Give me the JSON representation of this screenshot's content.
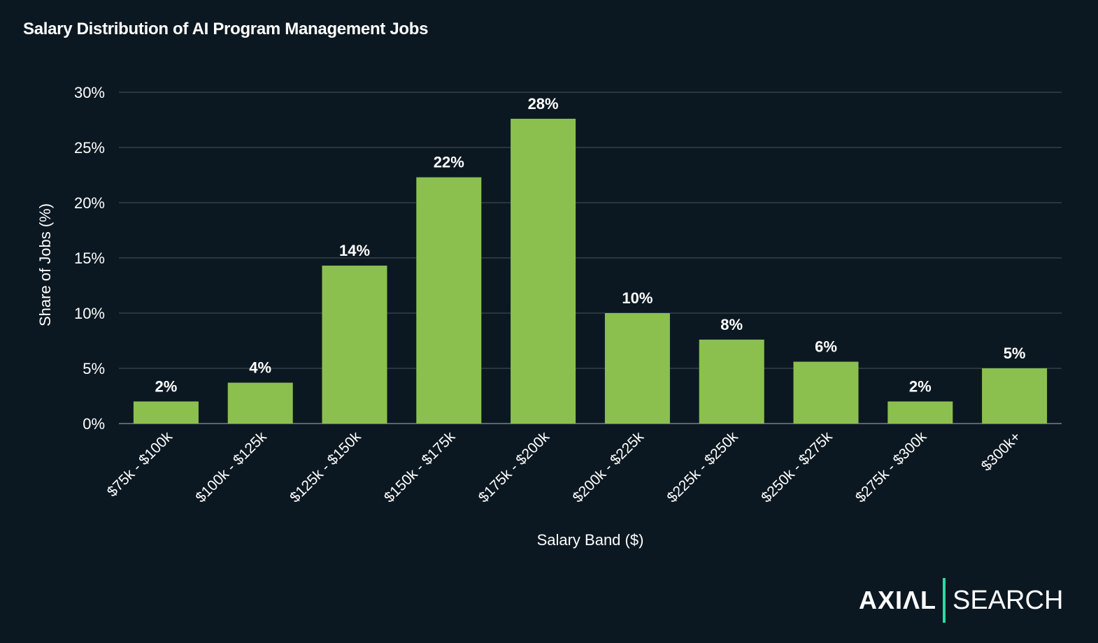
{
  "chart_data": {
    "type": "bar",
    "title": "Salary Distribution of AI Program Management Jobs",
    "xlabel": "Salary Band ($)",
    "ylabel": "Share of Jobs (%)",
    "ylim": [
      0,
      30
    ],
    "yticks": [
      "0%",
      "5%",
      "10%",
      "15%",
      "20%",
      "25%",
      "30%"
    ],
    "grid": true,
    "categories": [
      "$75k - $100k",
      "$100k - $125k",
      "$125k - $150k",
      "$150k - $175k",
      "$175k - $200k",
      "$200k - $225k",
      "$225k - $250k",
      "$250k - $275k",
      "$275k - $300k",
      "$300k+"
    ],
    "values": [
      2.0,
      3.7,
      14.3,
      22.3,
      27.6,
      10.0,
      7.6,
      5.6,
      2.0,
      5.0
    ],
    "data_labels": [
      "2%",
      "4%",
      "14%",
      "22%",
      "28%",
      "10%",
      "8%",
      "6%",
      "2%",
      "5%"
    ],
    "colors": {
      "bar": "#8bc04f",
      "background": "#0c1821",
      "grid": "#3a4750",
      "accent": "#2ddba0"
    }
  },
  "logo": {
    "left": "AXIΛL",
    "right": "SEARCH"
  }
}
